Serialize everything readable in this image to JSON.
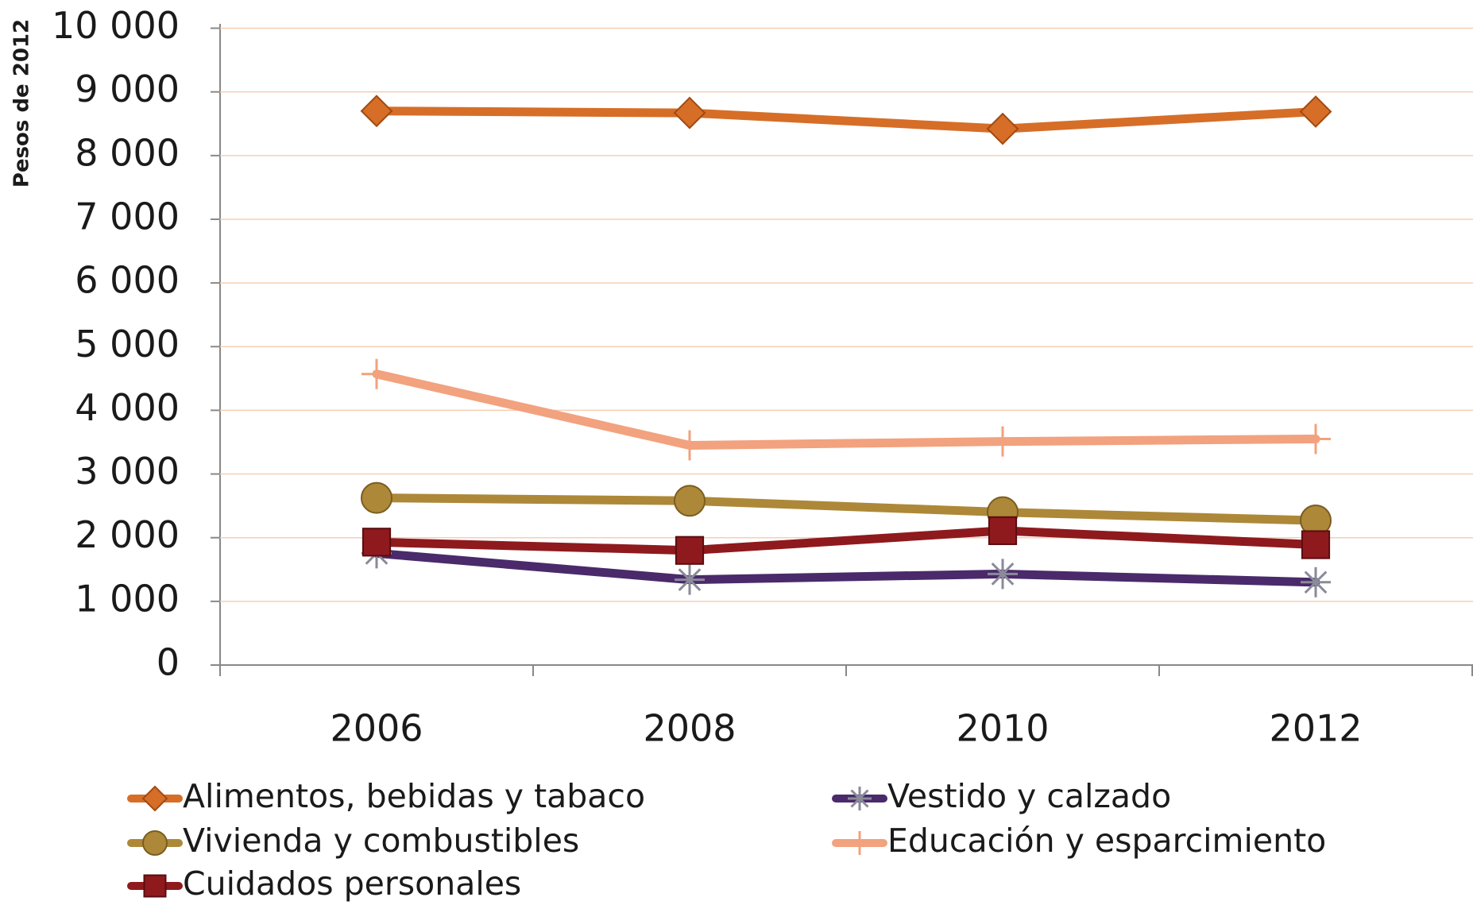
{
  "chart_data": {
    "type": "line",
    "y_label": "Pesos de 2012",
    "categories": [
      "2006",
      "2008",
      "2010",
      "2012"
    ],
    "ylim": [
      0,
      10000
    ],
    "yticks": [
      0,
      {
        "value": 1000,
        "label": "1 000"
      },
      {
        "value": 2000,
        "label": "2 000"
      },
      {
        "value": 3000,
        "label": "3 000"
      },
      {
        "value": 4000,
        "label": "4 000"
      },
      {
        "value": 5000,
        "label": "5 000"
      },
      {
        "value": 6000,
        "label": "6 000"
      },
      {
        "value": 7000,
        "label": "7 000"
      },
      {
        "value": 8000,
        "label": "8 000"
      },
      {
        "value": 9000,
        "label": "9 000"
      },
      {
        "value": 10000,
        "label": "10 000"
      }
    ],
    "grid": true,
    "series": [
      {
        "name": "Alimentos, bebidas y tabaco",
        "color": "#d66e28",
        "marker": "diamond",
        "values": [
          8700,
          8670,
          8420,
          8690
        ]
      },
      {
        "name": "Vestido y calzado",
        "color": "#4a2a6a",
        "marker": "star",
        "values": [
          1755,
          1340,
          1430,
          1300
        ]
      },
      {
        "name": "Vivienda y combustibles",
        "color": "#ad8838",
        "marker": "circle",
        "values": [
          2625,
          2580,
          2400,
          2270
        ]
      },
      {
        "name": "Educación y esparcimiento",
        "color": "#f2a27e",
        "marker": "plus",
        "values": [
          4570,
          3450,
          3510,
          3550
        ]
      },
      {
        "name": "Cuidados personales",
        "color": "#8e1a1e",
        "marker": "square",
        "values": [
          1930,
          1800,
          2110,
          1890
        ]
      }
    ]
  }
}
